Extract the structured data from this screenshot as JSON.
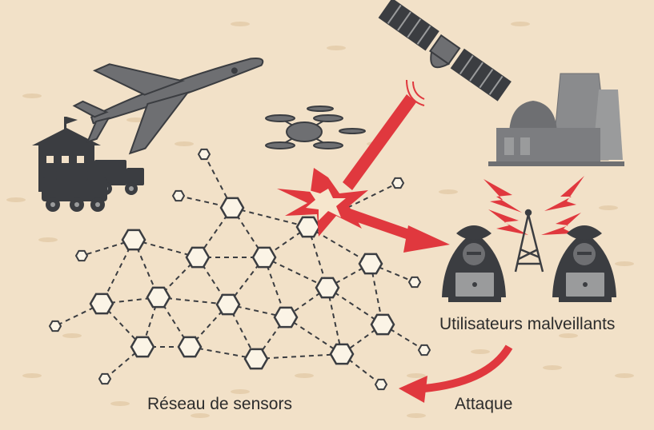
{
  "labels": {
    "malicious_users": "Utilisateurs malveillants",
    "sensor_network": "Réseau de sensors",
    "attack": "Attaque"
  },
  "colors": {
    "background": "#f2e1c8",
    "dark": "#3b3d41",
    "mid": "#6e6f72",
    "light": "#9a9b9c",
    "attack_red": "#e0383e",
    "node_fill": "#fbf4e6"
  },
  "icons": [
    "surveillance-drone-icon",
    "quadcopter-drone-icon",
    "satellite-icon",
    "military-base-icon",
    "military-truck-icon",
    "power-plant-icon",
    "radio-tower-icon",
    "hacker-icon",
    "laptop-icon",
    "explosion-icon",
    "lightning-icon",
    "sensor-node-icon"
  ]
}
